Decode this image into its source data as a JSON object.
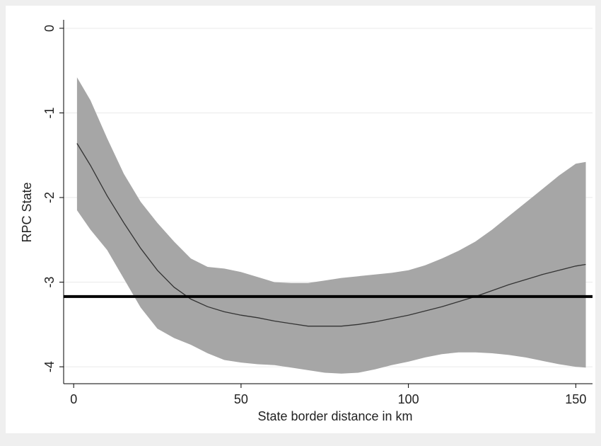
{
  "chart_data": {
    "type": "line",
    "title": "",
    "xlabel": "State border distance in km",
    "ylabel": "RPC State",
    "xlim": [
      -3,
      155
    ],
    "ylim": [
      -4.2,
      0.1
    ],
    "xticks": [
      0,
      50,
      100,
      150
    ],
    "yticks": [
      0,
      -1,
      -2,
      -3,
      -4
    ],
    "grid": true,
    "legend": "none",
    "colors": {
      "background": "#efefef",
      "plot_area": "#ffffff",
      "band": "#a6a6a6",
      "fit_line": "#333333",
      "reference_line": "#000000",
      "grid": "#eaeaea",
      "text": "#222222"
    },
    "series": [
      {
        "type": "line",
        "x": [
          1,
          5,
          10,
          15,
          20,
          25,
          30,
          35,
          40,
          45,
          50,
          55,
          60,
          65,
          70,
          75,
          80,
          85,
          90,
          95,
          100,
          105,
          110,
          115,
          120,
          125,
          130,
          135,
          140,
          145,
          150,
          153
        ],
        "y": [
          -1.36,
          -1.62,
          -1.98,
          -2.3,
          -2.6,
          -2.86,
          -3.06,
          -3.2,
          -3.29,
          -3.35,
          -3.39,
          -3.42,
          -3.46,
          -3.49,
          -3.52,
          -3.52,
          -3.52,
          -3.5,
          -3.47,
          -3.43,
          -3.39,
          -3.34,
          -3.29,
          -3.23,
          -3.17,
          -3.1,
          -3.03,
          -2.97,
          -2.91,
          -2.86,
          -2.81,
          -2.79
        ]
      },
      {
        "type": "band",
        "x": [
          1,
          5,
          10,
          15,
          20,
          25,
          30,
          35,
          40,
          45,
          50,
          55,
          60,
          65,
          70,
          75,
          80,
          85,
          90,
          95,
          100,
          105,
          110,
          115,
          120,
          125,
          130,
          135,
          140,
          145,
          150,
          153
        ],
        "upper": [
          -0.58,
          -0.85,
          -1.3,
          -1.72,
          -2.05,
          -2.3,
          -2.52,
          -2.72,
          -2.82,
          -2.84,
          -2.88,
          -2.94,
          -3.0,
          -3.01,
          -3.01,
          -2.98,
          -2.95,
          -2.93,
          -2.91,
          -2.89,
          -2.86,
          -2.8,
          -2.72,
          -2.63,
          -2.52,
          -2.38,
          -2.22,
          -2.06,
          -1.9,
          -1.74,
          -1.6,
          -1.58
        ],
        "lower": [
          -2.15,
          -2.38,
          -2.62,
          -2.96,
          -3.3,
          -3.55,
          -3.66,
          -3.74,
          -3.84,
          -3.92,
          -3.95,
          -3.97,
          -3.98,
          -4.01,
          -4.04,
          -4.07,
          -4.08,
          -4.07,
          -4.03,
          -3.98,
          -3.94,
          -3.89,
          -3.85,
          -3.83,
          -3.83,
          -3.84,
          -3.86,
          -3.89,
          -3.93,
          -3.97,
          -4.0,
          -4.01
        ]
      }
    ],
    "reference_line": {
      "orientation": "horizontal",
      "y": -3.17
    }
  }
}
